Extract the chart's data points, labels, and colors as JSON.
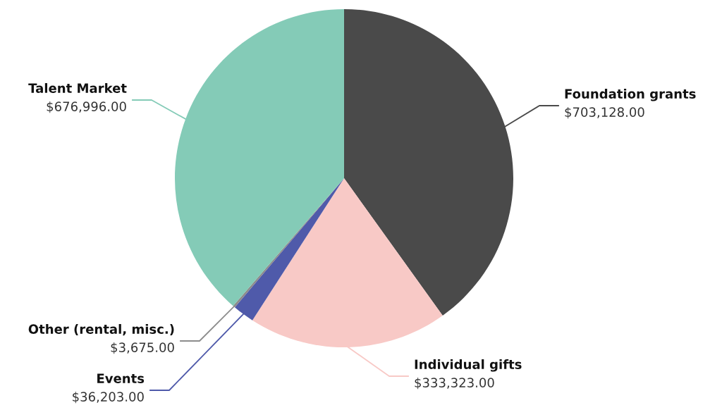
{
  "chart_data": {
    "type": "pie",
    "categories": [
      "Foundation grants",
      "Individual gifts",
      "Events",
      "Other (rental, misc.)",
      "Talent Market"
    ],
    "values": [
      703128,
      333323,
      36203,
      3675,
      676996
    ],
    "colors": [
      "#4a4a4a",
      "#f8c9c6",
      "#4f5aaa",
      "#8c8c8c",
      "#84cbb7"
    ],
    "value_labels": [
      "$703,128.00",
      "$333,323.00",
      "$36,203.00",
      "$3,675.00",
      "$676,996.00"
    ],
    "legend": false
  }
}
